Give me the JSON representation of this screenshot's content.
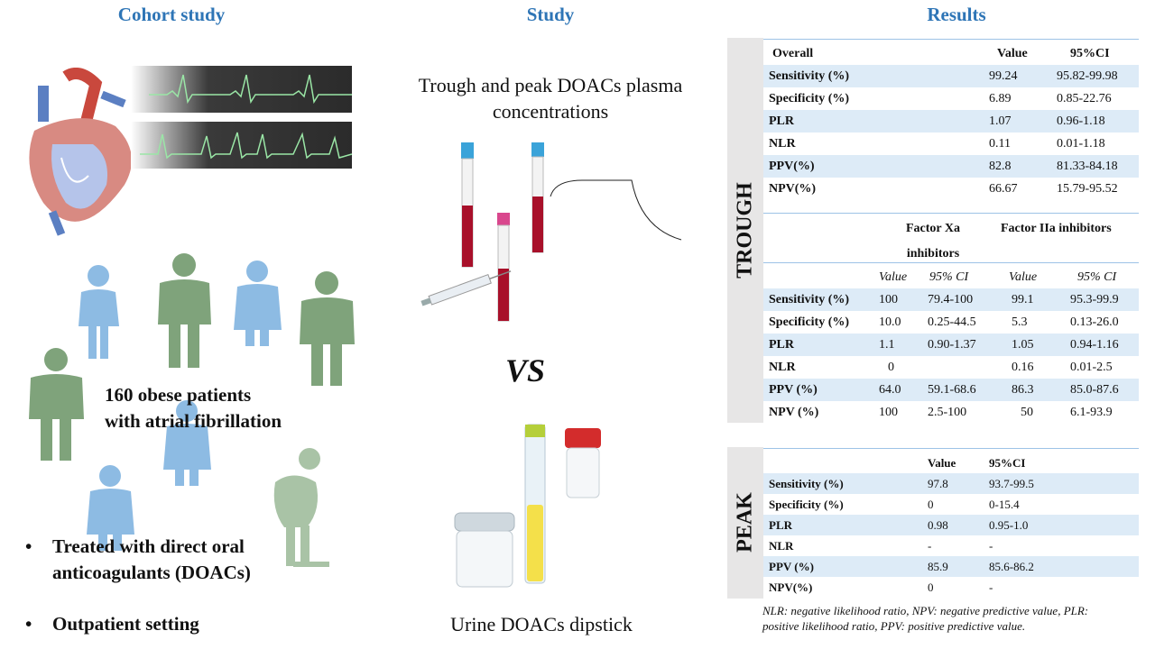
{
  "headers": {
    "left": "Cohort study",
    "middle": "Study",
    "right": "Results"
  },
  "left": {
    "patients_line1": "160 obese patients",
    "patients_line2": "with atrial fibrillation",
    "bullets": [
      "Treated with direct oral",
      "anticoagulants (DOACs)",
      "Outpatient setting"
    ],
    "bullet_symbol": "•"
  },
  "middle": {
    "top_line1": "Trough and peak DOACs plasma",
    "top_line2": "concentrations",
    "vs": "VS",
    "bottom": "Urine DOACs dipstick"
  },
  "trough": {
    "label": "TROUGH",
    "overall": {
      "header": [
        "Overall",
        "Value",
        "95%CI"
      ],
      "rows": [
        [
          "Sensitivity (%)",
          "99.24",
          "95.82-99.98"
        ],
        [
          "Specificity (%)",
          "6.89",
          "0.85-22.76"
        ],
        [
          "PLR",
          "1.07",
          "0.96-1.18"
        ],
        [
          "NLR",
          "0.11",
          "0.01-1.18"
        ],
        [
          "PPV(%)",
          "82.8",
          "81.33-84.18"
        ],
        [
          "NPV(%)",
          "66.67",
          "15.79-95.52"
        ]
      ]
    },
    "split": {
      "group1_line1": "Factor Xa",
      "group1_line2": "inhibitors",
      "group2": "Factor IIa inhibitors",
      "subheader": [
        "Value",
        "95% CI",
        "Value",
        "95% CI"
      ],
      "rows": [
        [
          "Sensitivity (%)",
          "100",
          "79.4-100",
          "99.1",
          "95.3-99.9"
        ],
        [
          "Specificity (%)",
          "10.0",
          "0.25-44.5",
          "5.3",
          "0.13-26.0"
        ],
        [
          "PLR",
          "1.1",
          "0.90-1.37",
          "1.05",
          "0.94-1.16"
        ],
        [
          "NLR",
          "0",
          "",
          "0.16",
          "0.01-2.5"
        ],
        [
          "PPV (%)",
          "64.0",
          "59.1-68.6",
          "86.3",
          "85.0-87.6"
        ],
        [
          "NPV (%)",
          "100",
          "2.5-100",
          "50",
          "6.1-93.9"
        ]
      ]
    }
  },
  "peak": {
    "label": "PEAK",
    "header": [
      "Value",
      "95%CI"
    ],
    "rows": [
      [
        "Sensitivity (%)",
        "97.8",
        "93.7-99.5"
      ],
      [
        "Specificity (%)",
        "0",
        "0-15.4"
      ],
      [
        "PLR",
        "0.98",
        "0.95-1.0"
      ],
      [
        "NLR",
        "-",
        "-"
      ],
      [
        "PPV (%)",
        "85.9",
        "85.6-86.2"
      ],
      [
        "NPV(%)",
        "0",
        "-"
      ]
    ]
  },
  "footnote_line1": "NLR: negative likelihood ratio, NPV: negative predictive value, PLR:",
  "footnote_line2": "positive likelihood ratio, PPV: positive predictive value.",
  "colors": {
    "header": "#2e75b6",
    "row_alt": "#ddebf7",
    "figure_green": "#7fa37b",
    "figure_blue": "#8dbbe3",
    "panel": "#e7e6e6"
  }
}
